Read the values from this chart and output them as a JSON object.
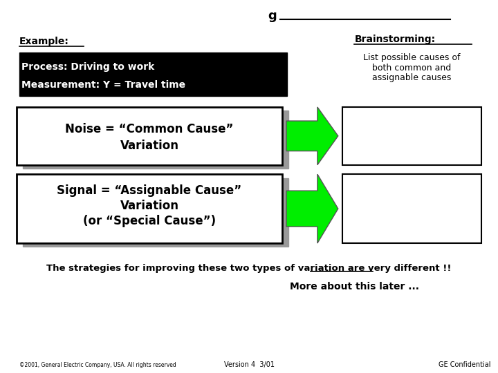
{
  "bg_color": "#ffffff",
  "title_text": "g",
  "example_label": "Example:",
  "process_line1": "Process: Driving to work",
  "process_line2": "Measurement: Y = Travel time",
  "brainstorming_title": "Brainstorming:",
  "brainstorming_line1": "List possible causes of",
  "brainstorming_line2": "both common and",
  "brainstorming_line3": "assignable causes",
  "noise_line1": "Noise = “Common Cause”",
  "noise_line2": "Variation",
  "signal_line1": "Signal = “Assignable Cause”",
  "signal_line2": "Variation",
  "signal_line3": "(or “Special Cause”)",
  "bottom_text": "The strategies for improving these two types of variation are very ",
  "bottom_text_underline": "different",
  "bottom_text_end": " !!",
  "more_text": "More about this later ...",
  "footer_left": "©2001, General Electric Company, USA. All rights reserved",
  "footer_center": "Version 4  3/01",
  "footer_right": "GE Confidential"
}
